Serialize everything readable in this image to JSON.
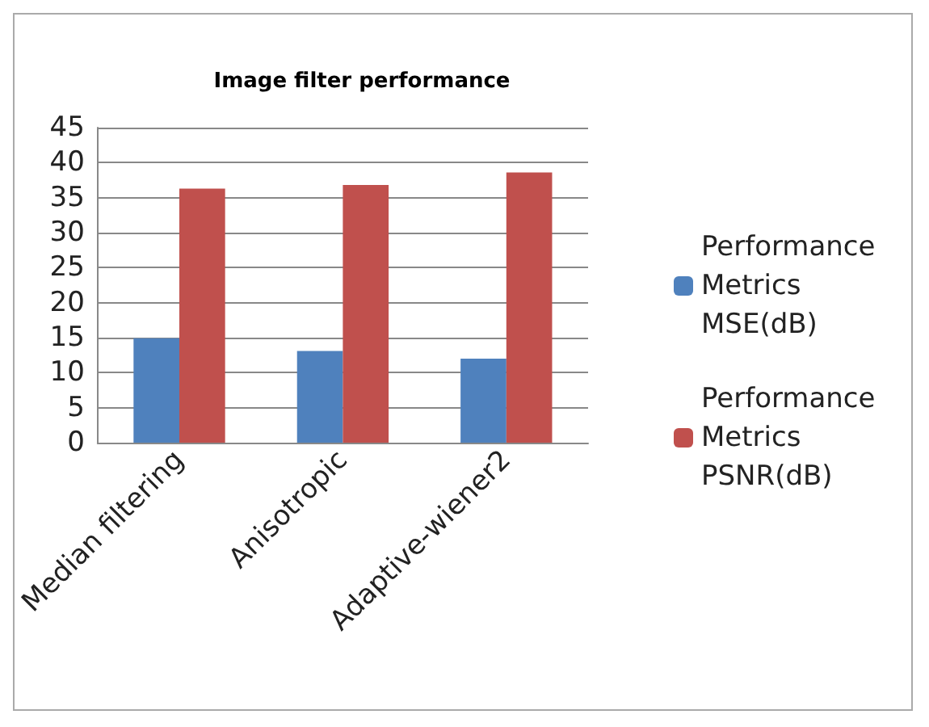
{
  "chart_data": {
    "type": "bar",
    "title": "Image filter performance",
    "categories": [
      "Median filtering",
      "Anisotropic",
      "Adaptive-wiener2"
    ],
    "series": [
      {
        "name": "Performance Metrics MSE(dB)",
        "color": "#4f81bd",
        "values": [
          14.9,
          13.1,
          12.0
        ]
      },
      {
        "name": "Performance Metrics PSNR(dB)",
        "color": "#c0504d",
        "values": [
          36.3,
          36.8,
          38.6
        ]
      }
    ],
    "ylim": [
      0,
      45
    ],
    "yticks": [
      0,
      5,
      10,
      15,
      20,
      25,
      30,
      35,
      40,
      45
    ],
    "grid": "y",
    "legend": "right"
  }
}
